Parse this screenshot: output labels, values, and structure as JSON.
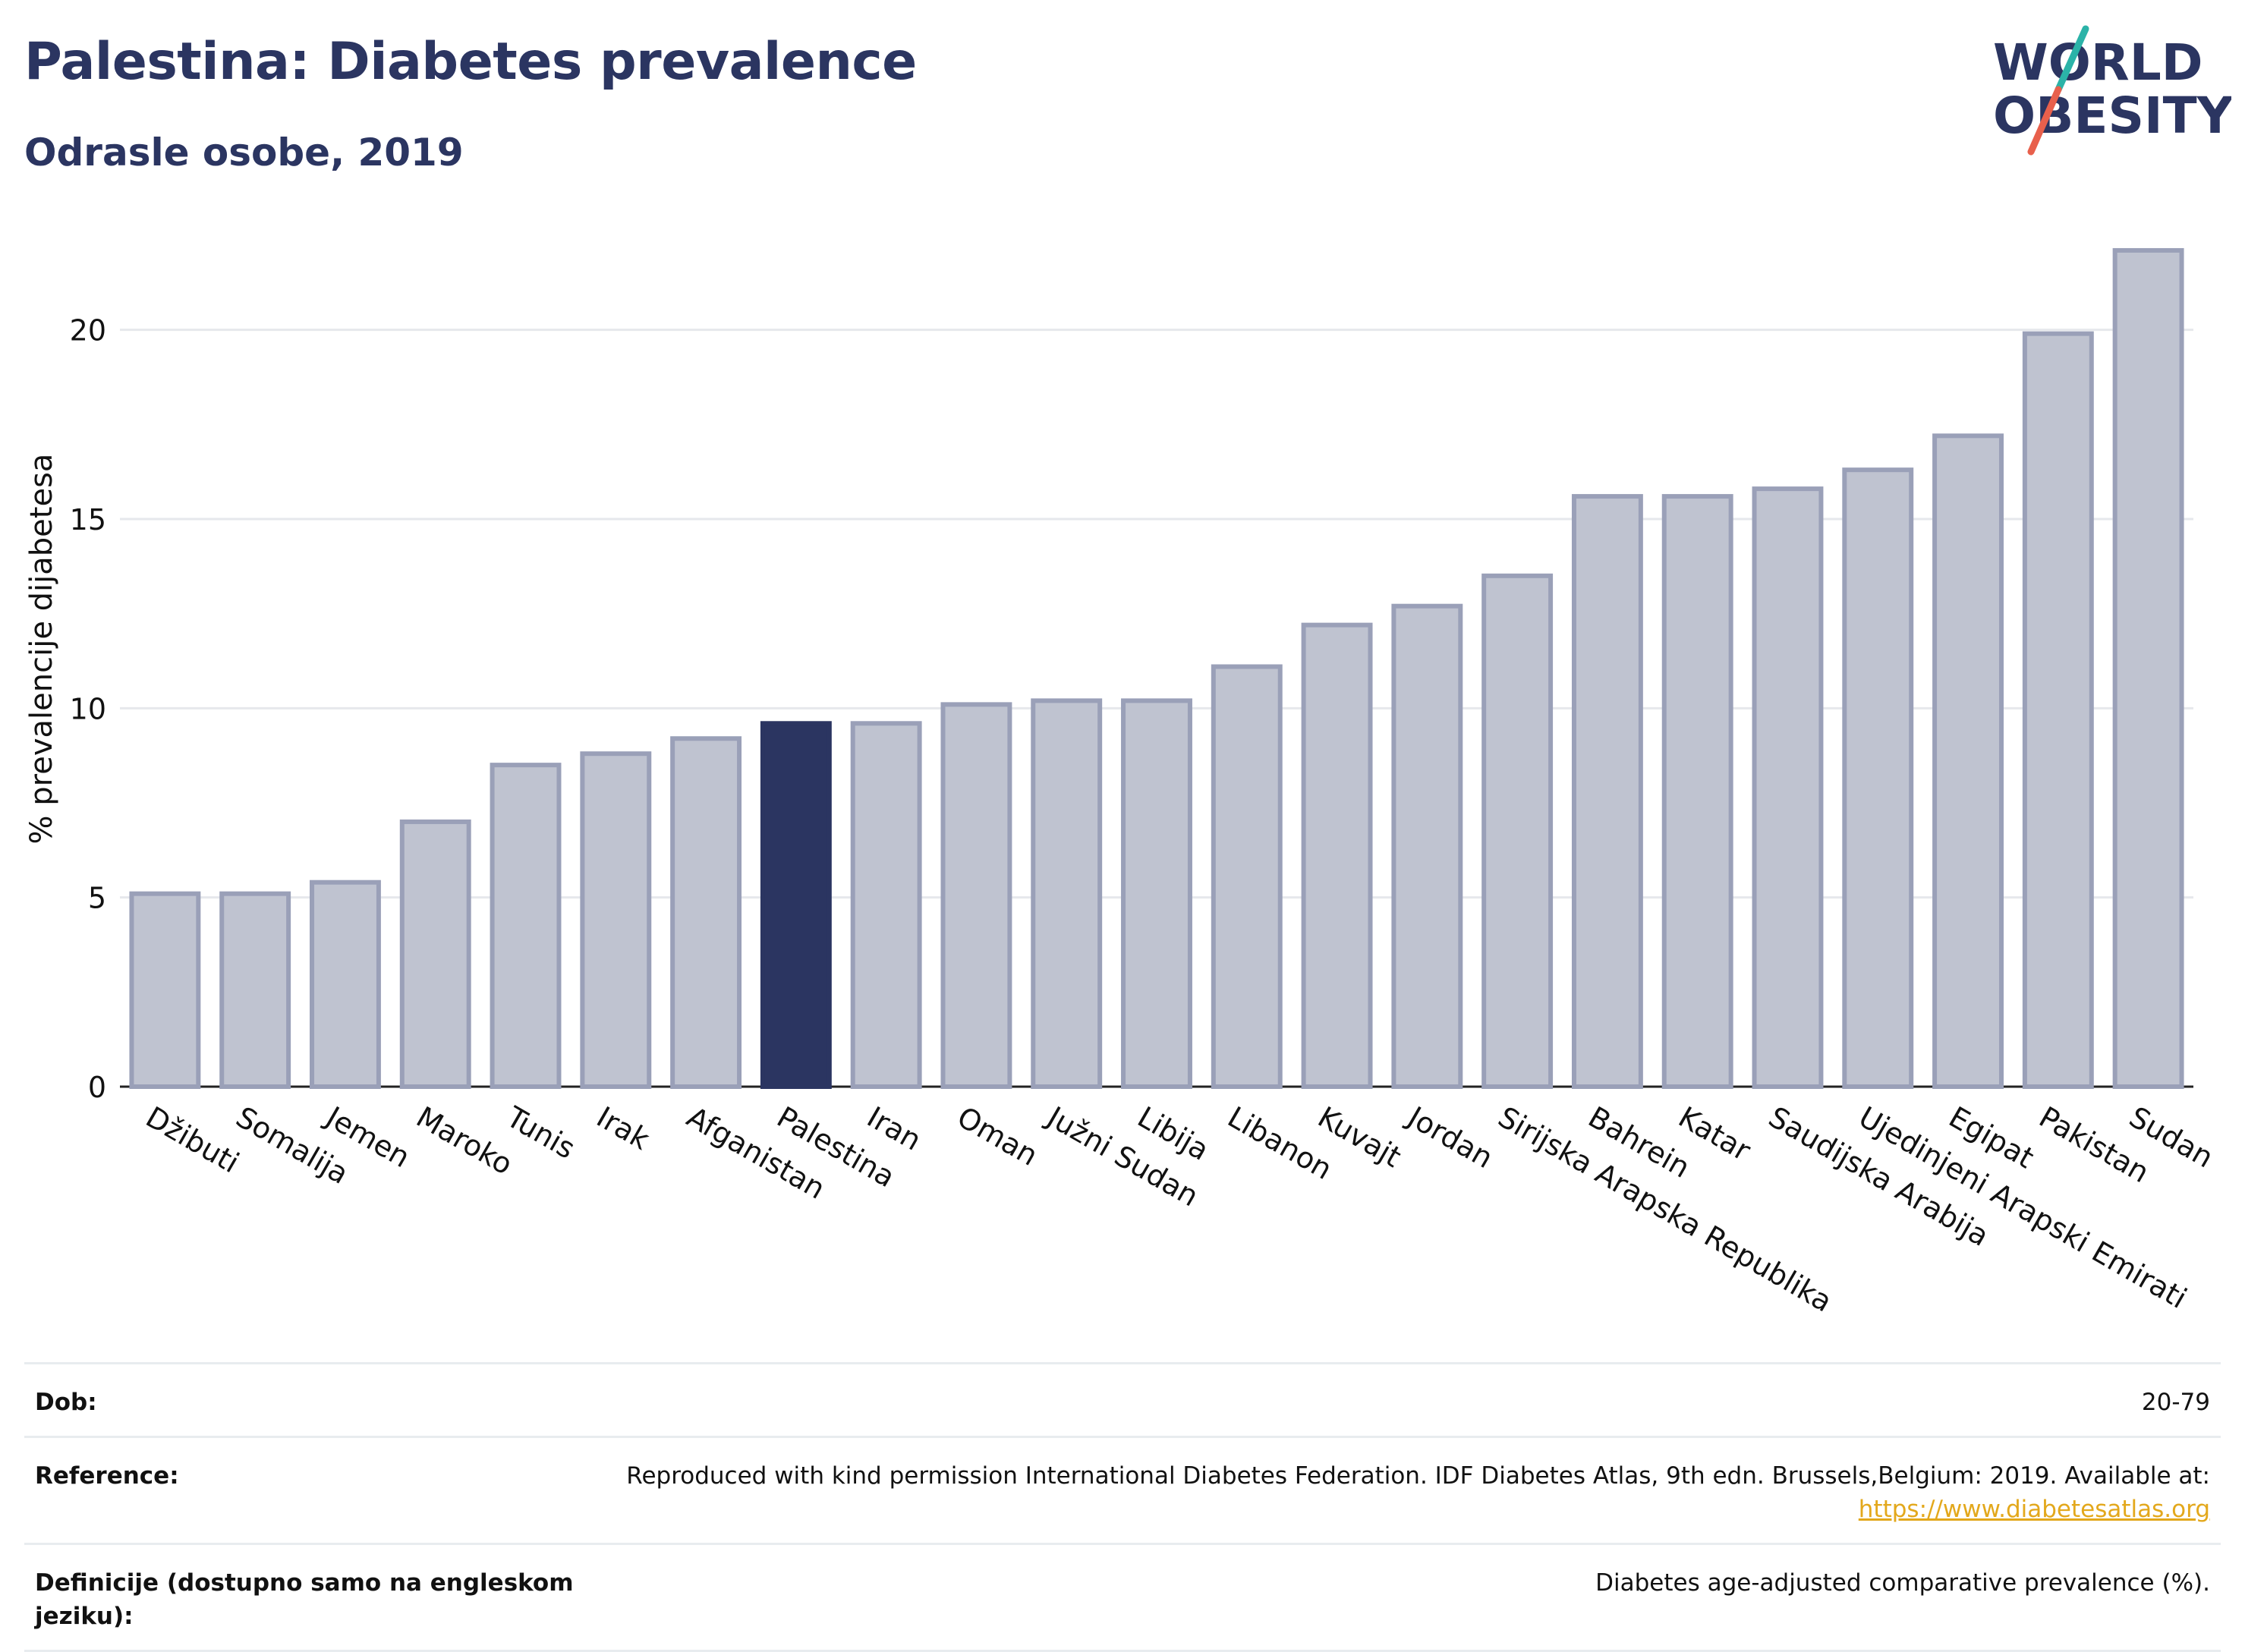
{
  "header": {
    "title": "Palestina: Diabetes prevalence",
    "subtitle": "Odrasle osobe, 2019",
    "logo_line1": "WORLD",
    "logo_line2": "OBESITY"
  },
  "chart_data": {
    "type": "bar",
    "ylabel": "% prevalencije dijabetesa",
    "ylim": [
      0,
      22.5
    ],
    "yticks": [
      0,
      5,
      10,
      15,
      20
    ],
    "grid": true,
    "highlight": "Palestina",
    "colors": {
      "bar": "#bfc3d0",
      "bar_edge": "#9aa0b8",
      "highlight": "#2b3561",
      "grid": "#e6e8ec"
    },
    "categories": [
      "Džibuti",
      "Somalija",
      "Jemen",
      "Maroko",
      "Tunis",
      "Irak",
      "Afganistan",
      "Palestina",
      "Iran",
      "Oman",
      "Južni Sudan",
      "Libija",
      "Libanon",
      "Kuvajt",
      "Jordan",
      "Sirijska Arapska Republika",
      "Bahrein",
      "Katar",
      "Saudijska Arabija",
      "Ujedinjeni Arapski Emirati",
      "Egipat",
      "Pakistan",
      "Sudan"
    ],
    "values": [
      5.1,
      5.1,
      5.4,
      7.0,
      8.5,
      8.8,
      9.2,
      9.6,
      9.6,
      10.1,
      10.2,
      10.2,
      11.1,
      12.2,
      12.7,
      13.5,
      15.6,
      15.6,
      15.8,
      16.3,
      17.2,
      19.9,
      22.1
    ]
  },
  "meta": {
    "age_label": "Dob:",
    "age_value": "20-79",
    "reference_label": "Reference:",
    "reference_value": "Reproduced with kind permission International Diabetes Federation. IDF Diabetes Atlas, 9th edn. Brussels,Belgium: 2019. Available at:",
    "reference_link": "https://www.diabetesatlas.org",
    "definition_label": "Definicije (dostupno samo na engleskom jeziku):",
    "definition_value": "Diabetes age-adjusted comparative prevalence (%)."
  }
}
